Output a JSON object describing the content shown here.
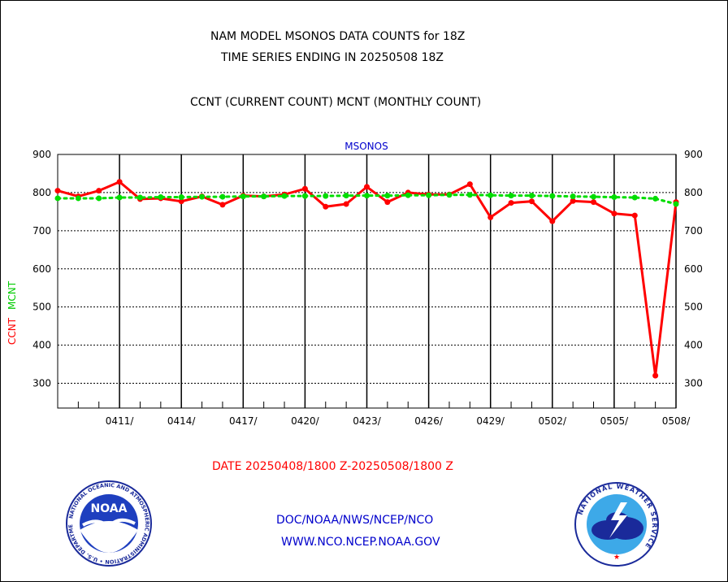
{
  "header": {
    "line1": "NAM MODEL MSONOS DATA COUNTS for 18Z",
    "line2": "TIME SERIES ENDING IN 20250508 18Z",
    "line3": "CCNT (CURRENT COUNT) MCNT (MONTHLY COUNT)"
  },
  "footer": {
    "date_range": "DATE 20250408/1800 Z-20250508/1800 Z",
    "org": "DOC/NOAA/NWS/NCEP/NCO",
    "url": "WWW.NCO.NCEP.NOAA.GOV"
  },
  "logos": {
    "noaa_text": "NOAA",
    "noaa_ring": "NATIONAL OCEANIC AND ATMOSPHERIC ADMINISTRATION • U.S. DEPARTMENT OF COMMERCE",
    "nws_ring": "NATIONAL WEATHER SERVICE"
  },
  "chart_data": {
    "type": "line",
    "title": "MSONOS",
    "ylabel_left": [
      "CCNT",
      "MCNT"
    ],
    "ylim": [
      235,
      900
    ],
    "yticks": [
      300,
      400,
      500,
      600,
      700,
      800,
      900
    ],
    "xlim": [
      0,
      30
    ],
    "xtick_labels": [
      "0411/",
      "0414/",
      "0417/",
      "0420/",
      "0423/",
      "0426/",
      "0429/",
      "0502/",
      "0505/",
      "0508/"
    ],
    "xtick_positions": [
      3,
      6,
      9,
      12,
      15,
      18,
      21,
      24,
      27,
      30
    ],
    "grid": true,
    "colors": {
      "ccnt": "#ff0000",
      "mcnt": "#00dd00"
    },
    "series": [
      {
        "name": "CCNT",
        "x": [
          0,
          1,
          2,
          3,
          4,
          5,
          6,
          7,
          8,
          9,
          10,
          11,
          12,
          13,
          14,
          15,
          16,
          17,
          18,
          19,
          20,
          21,
          22,
          23,
          24,
          25,
          26,
          27,
          28,
          29,
          30
        ],
        "values": [
          805,
          790,
          805,
          828,
          783,
          785,
          777,
          790,
          768,
          792,
          790,
          795,
          810,
          763,
          770,
          815,
          775,
          800,
          795,
          795,
          822,
          735,
          773,
          777,
          725,
          778,
          775,
          745,
          740,
          320,
          775
        ]
      },
      {
        "name": "MCNT",
        "x": [
          0,
          1,
          2,
          3,
          4,
          5,
          6,
          7,
          8,
          9,
          10,
          11,
          12,
          13,
          14,
          15,
          16,
          17,
          18,
          19,
          20,
          21,
          22,
          23,
          24,
          25,
          26,
          27,
          28,
          29,
          30
        ],
        "values": [
          785,
          785,
          785,
          787,
          787,
          788,
          788,
          789,
          789,
          790,
          790,
          791,
          791,
          791,
          792,
          792,
          792,
          793,
          793,
          794,
          794,
          793,
          792,
          792,
          791,
          790,
          789,
          788,
          787,
          784,
          770
        ]
      }
    ]
  }
}
